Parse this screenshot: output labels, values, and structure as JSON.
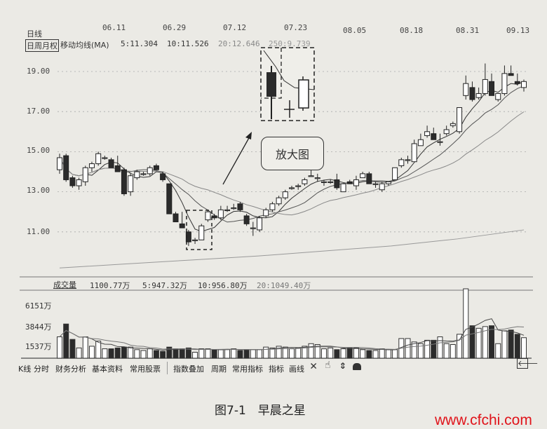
{
  "header": {
    "period_label": "日线",
    "adjust_tab": "日周月权",
    "ma_title": "移动均线(MA)",
    "ma_values": [
      "5:11.304",
      "10:11.526",
      "20:12.646",
      "250:9.739"
    ]
  },
  "volume_header": {
    "title": "成交量",
    "values": [
      "1100.77万",
      "5:947.32万",
      "10:956.80万",
      "20:1049.40万"
    ]
  },
  "callout": "放大图",
  "toolbar": {
    "items": [
      "K线",
      "分时",
      "财务分析",
      "基本资料",
      "常用股票",
      "指数叠加",
      "周期",
      "常用指标",
      "指标",
      "画线"
    ],
    "icons": [
      "close-icon",
      "hand-pointer-icon",
      "up-down-arrow-icon",
      "lock-icon"
    ],
    "back_icon": "arrow-left-icon"
  },
  "caption": "图7-1　早晨之星",
  "watermark": "www.cfchi.com",
  "colors": {
    "up": "#ffffff",
    "down": "#2b2b2b",
    "watermark": "#e0141b"
  },
  "chart_data": [
    {
      "type": "candlestick",
      "x_tick_labels": [
        "06.11",
        "06.29",
        "07.12",
        "07.23",
        "08.05",
        "08.18",
        "08.31",
        "09.13"
      ],
      "y_tick_labels": [
        "19.00",
        "17.00",
        "15.00",
        "13.00",
        "11.00"
      ],
      "ylim": [
        9,
        19.8
      ],
      "grid": true,
      "ohlc": [
        [
          14.1,
          14.9,
          13.9,
          14.7
        ],
        [
          14.8,
          14.9,
          13.5,
          13.6
        ],
        [
          13.7,
          13.8,
          13.2,
          13.3
        ],
        [
          13.3,
          13.7,
          13.1,
          13.6
        ],
        [
          13.5,
          14.3,
          13.3,
          14.2
        ],
        [
          14.2,
          14.5,
          14.0,
          14.4
        ],
        [
          14.4,
          15.0,
          14.3,
          14.9
        ],
        [
          14.7,
          14.8,
          14.6,
          14.7
        ],
        [
          14.6,
          14.7,
          14.2,
          14.2
        ],
        [
          14.3,
          14.8,
          14.0,
          14.0
        ],
        [
          14.1,
          14.2,
          12.8,
          12.9
        ],
        [
          13.0,
          13.9,
          12.8,
          13.8
        ],
        [
          13.7,
          14.1,
          13.6,
          14.0
        ],
        [
          13.9,
          14.0,
          13.8,
          13.9
        ],
        [
          13.9,
          14.3,
          13.8,
          14.2
        ],
        [
          14.3,
          14.4,
          14.1,
          14.1
        ],
        [
          13.9,
          14.0,
          13.5,
          13.6
        ],
        [
          13.4,
          13.4,
          11.9,
          11.9
        ],
        [
          11.9,
          12.0,
          11.5,
          11.5
        ],
        [
          11.4,
          12.0,
          11.2,
          11.2
        ],
        [
          11.0,
          11.1,
          10.3,
          10.5
        ],
        [
          10.6,
          10.7,
          10.4,
          10.6
        ],
        [
          10.6,
          11.4,
          10.6,
          11.3
        ],
        [
          11.6,
          12.1,
          11.5,
          12.0
        ],
        [
          11.8,
          11.9,
          11.6,
          11.7
        ],
        [
          11.7,
          12.3,
          11.6,
          12.1
        ],
        [
          12.1,
          12.3,
          12.0,
          12.1
        ],
        [
          12.2,
          12.4,
          12.1,
          12.2
        ],
        [
          12.4,
          12.5,
          12.0,
          12.1
        ],
        [
          11.8,
          11.9,
          11.3,
          11.4
        ],
        [
          11.2,
          11.5,
          10.8,
          11.2
        ],
        [
          11.1,
          11.8,
          11.0,
          11.7
        ],
        [
          11.8,
          12.2,
          11.7,
          12.1
        ],
        [
          12.1,
          12.5,
          12.0,
          12.4
        ],
        [
          12.4,
          12.8,
          12.3,
          12.7
        ],
        [
          12.7,
          13.1,
          12.6,
          13.0
        ],
        [
          13.2,
          13.3,
          13.1,
          13.2
        ],
        [
          13.3,
          13.4,
          13.1,
          13.3
        ],
        [
          13.4,
          13.7,
          13.3,
          13.6
        ],
        [
          13.8,
          14.1,
          13.8,
          13.8
        ],
        [
          13.7,
          13.9,
          13.5,
          13.7
        ],
        [
          13.5,
          13.6,
          13.3,
          13.5
        ],
        [
          13.5,
          13.6,
          13.4,
          13.5
        ],
        [
          13.6,
          13.9,
          13.1,
          13.2
        ],
        [
          13.0,
          13.4,
          13.0,
          13.4
        ],
        [
          13.5,
          13.6,
          13.4,
          13.4
        ],
        [
          13.3,
          13.8,
          13.1,
          13.6
        ],
        [
          13.7,
          14.0,
          13.7,
          13.9
        ],
        [
          13.9,
          14.0,
          13.4,
          13.4
        ],
        [
          13.4,
          13.5,
          13.2,
          13.4
        ],
        [
          13.1,
          13.5,
          13.0,
          13.4
        ],
        [
          13.4,
          13.5,
          13.3,
          13.5
        ],
        [
          13.6,
          14.2,
          13.6,
          14.2
        ],
        [
          14.3,
          14.7,
          14.2,
          14.6
        ],
        [
          14.6,
          14.8,
          14.4,
          14.6
        ],
        [
          14.5,
          15.6,
          14.5,
          15.4
        ],
        [
          15.3,
          15.9,
          15.3,
          15.6
        ],
        [
          15.8,
          16.3,
          15.7,
          16.0
        ],
        [
          15.9,
          16.2,
          15.6,
          15.6
        ],
        [
          15.5,
          15.9,
          15.3,
          15.5
        ],
        [
          15.9,
          16.3,
          15.8,
          16.1
        ],
        [
          16.3,
          16.5,
          16.2,
          16.4
        ],
        [
          16.0,
          17.2,
          15.9,
          17.2
        ],
        [
          17.8,
          18.8,
          17.6,
          18.4
        ],
        [
          18.2,
          18.5,
          17.5,
          17.6
        ],
        [
          17.7,
          18.2,
          17.6,
          17.9
        ],
        [
          17.9,
          19.4,
          17.8,
          18.6
        ],
        [
          18.5,
          18.9,
          17.8,
          17.8
        ],
        [
          17.6,
          17.9,
          17.5,
          17.9
        ],
        [
          17.9,
          19.3,
          17.8,
          18.9
        ],
        [
          18.9,
          19.3,
          18.8,
          18.8
        ],
        [
          18.5,
          18.9,
          18.3,
          18.4
        ],
        [
          18.2,
          18.6,
          18.0,
          18.5
        ]
      ],
      "long_ma": [
        9.2,
        9.4,
        9.6,
        9.8,
        10.05,
        10.3,
        10.65,
        11.1
      ]
    },
    {
      "type": "bar",
      "y_tick_labels": [
        "6151万",
        "3844万",
        "1537万"
      ],
      "unit": "万",
      "values": [
        2500,
        4000,
        2200,
        1200,
        2500,
        1400,
        2000,
        1100,
        1100,
        1200,
        1300,
        1300,
        1000,
        900,
        1100,
        900,
        800,
        1300,
        1100,
        1100,
        1200,
        700,
        1100,
        1100,
        1000,
        1000,
        1000,
        1100,
        900,
        1000,
        1000,
        1000,
        1300,
        1200,
        1400,
        1300,
        1100,
        1200,
        1400,
        1700,
        1600,
        1100,
        1200,
        1000,
        1100,
        1200,
        1200,
        1000,
        900,
        900,
        1100,
        1000,
        1000,
        2300,
        2300,
        1900,
        1700,
        2100,
        2100,
        2500,
        1700,
        1600,
        2800,
        8300,
        3800,
        3500,
        3700,
        3800,
        1700,
        3200,
        3300,
        2800,
        2400
      ]
    }
  ]
}
